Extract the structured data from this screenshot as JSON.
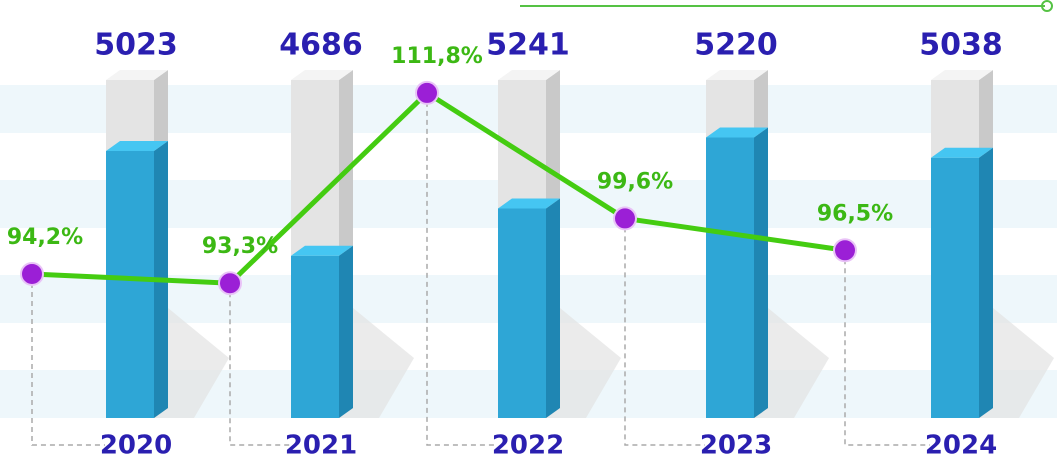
{
  "chart_data": {
    "type": "bar-line",
    "categories": [
      "2020",
      "2021",
      "2022",
      "2023",
      "2024"
    ],
    "series": [
      {
        "values": [
          5023,
          4686,
          5241,
          5220,
          5038
        ],
        "color": "#e4e4e4"
      },
      {
        "values": [
          79,
          48,
          62,
          83,
          77
        ],
        "color": "#2ea6d6"
      },
      {
        "values": [
          94.2,
          93.3,
          111.8,
          99.6,
          96.5
        ],
        "value_labels": [
          "94,2%",
          "93,3%",
          "111,8%",
          "99,6%",
          "96,5%"
        ],
        "color": "#44cc11",
        "axis": "y2"
      }
    ],
    "ylim": [
      0,
      100
    ],
    "y2lim": [
      80,
      115
    ]
  }
}
